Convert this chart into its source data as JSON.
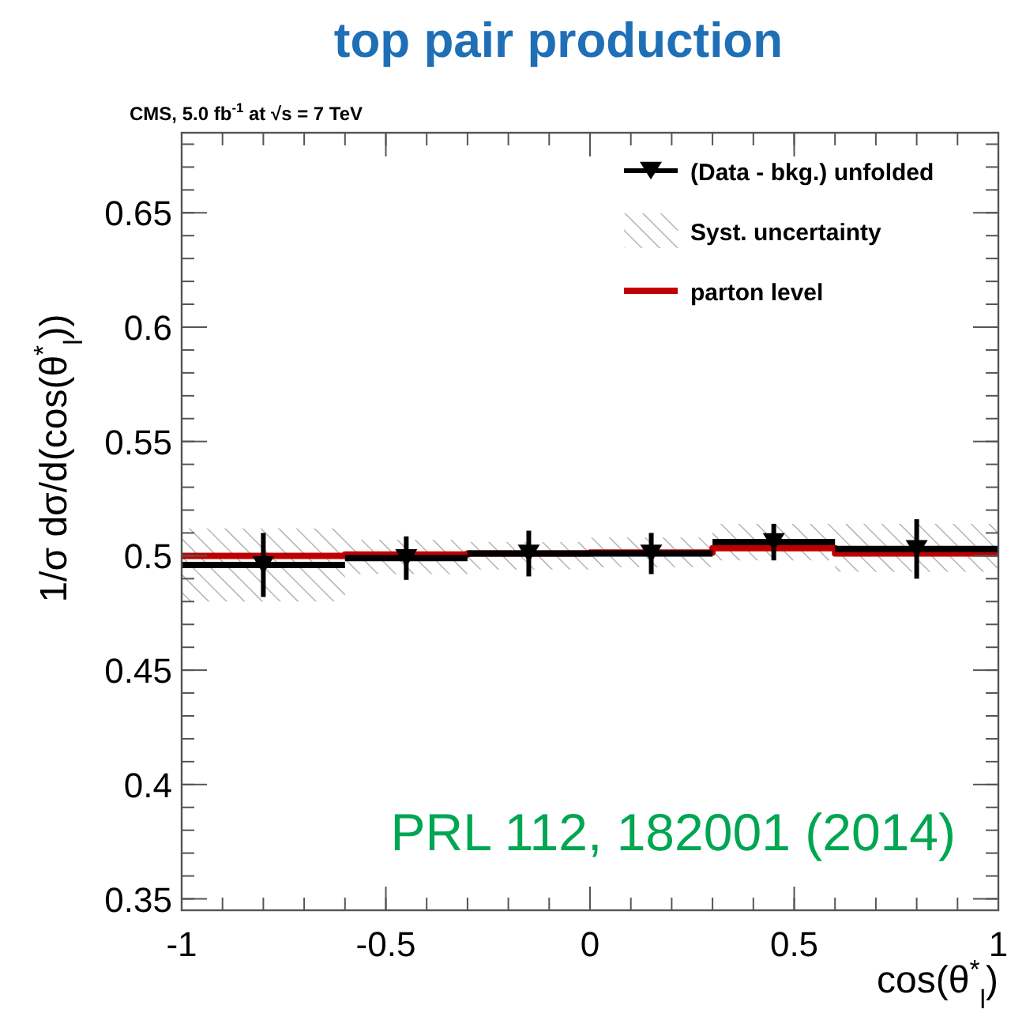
{
  "chart_data": {
    "type": "scatter",
    "title": "top pair production",
    "subtitle": "CMS, 5.0 fb$^{-1}$ at √s = 7 TeV",
    "xlabel": "cos(θ$^{*}$$_{l}$)",
    "ylabel": "1/σ dσ/d(cos(θ$^{*}$$_{l}$))",
    "annotations": [
      "PRL 112, 182001 (2014)"
    ],
    "xlim": [
      -1,
      1
    ],
    "xticks": [
      -1,
      -0.5,
      0,
      0.5,
      1
    ],
    "ylim": [
      0.345,
      0.685
    ],
    "yticks": [
      0.35,
      0.4,
      0.45,
      0.5,
      0.55,
      0.6,
      0.65
    ],
    "legend": "top right",
    "grid": false,
    "series": [
      {
        "name": "(Data - bkg.) unfolded",
        "marker": "triangle",
        "color": "#000000",
        "x": [
          -0.8,
          -0.45,
          -0.15,
          0.15,
          0.45,
          0.8
        ],
        "values": [
          0.496,
          0.499,
          0.501,
          0.501,
          0.506,
          0.503
        ],
        "errors": [
          0.014,
          0.0095,
          0.01,
          0.009,
          0.008,
          0.013
        ],
        "xerrors": [
          0.2,
          0.15,
          0.15,
          0.15,
          0.15,
          0.2
        ]
      },
      {
        "name": "Syst. uncertainty",
        "type": "bar",
        "color": "#a0a0a0",
        "x": [
          -0.8,
          -0.45,
          -0.15,
          0.15,
          0.45,
          0.8
        ],
        "base": [
          0.48,
          0.492,
          0.494,
          0.495,
          0.498,
          0.493
        ],
        "values": [
          0.032,
          0.015,
          0.012,
          0.013,
          0.016,
          0.021
        ]
      },
      {
        "name": "parton level",
        "type": "step",
        "color": "#c00000",
        "x": [
          -1,
          -0.6,
          -0.3,
          0,
          0.3,
          0.6,
          1
        ],
        "values": [
          0.5,
          0.5006,
          0.501,
          0.5014,
          0.5033,
          0.501,
          0.501
        ]
      }
    ]
  }
}
